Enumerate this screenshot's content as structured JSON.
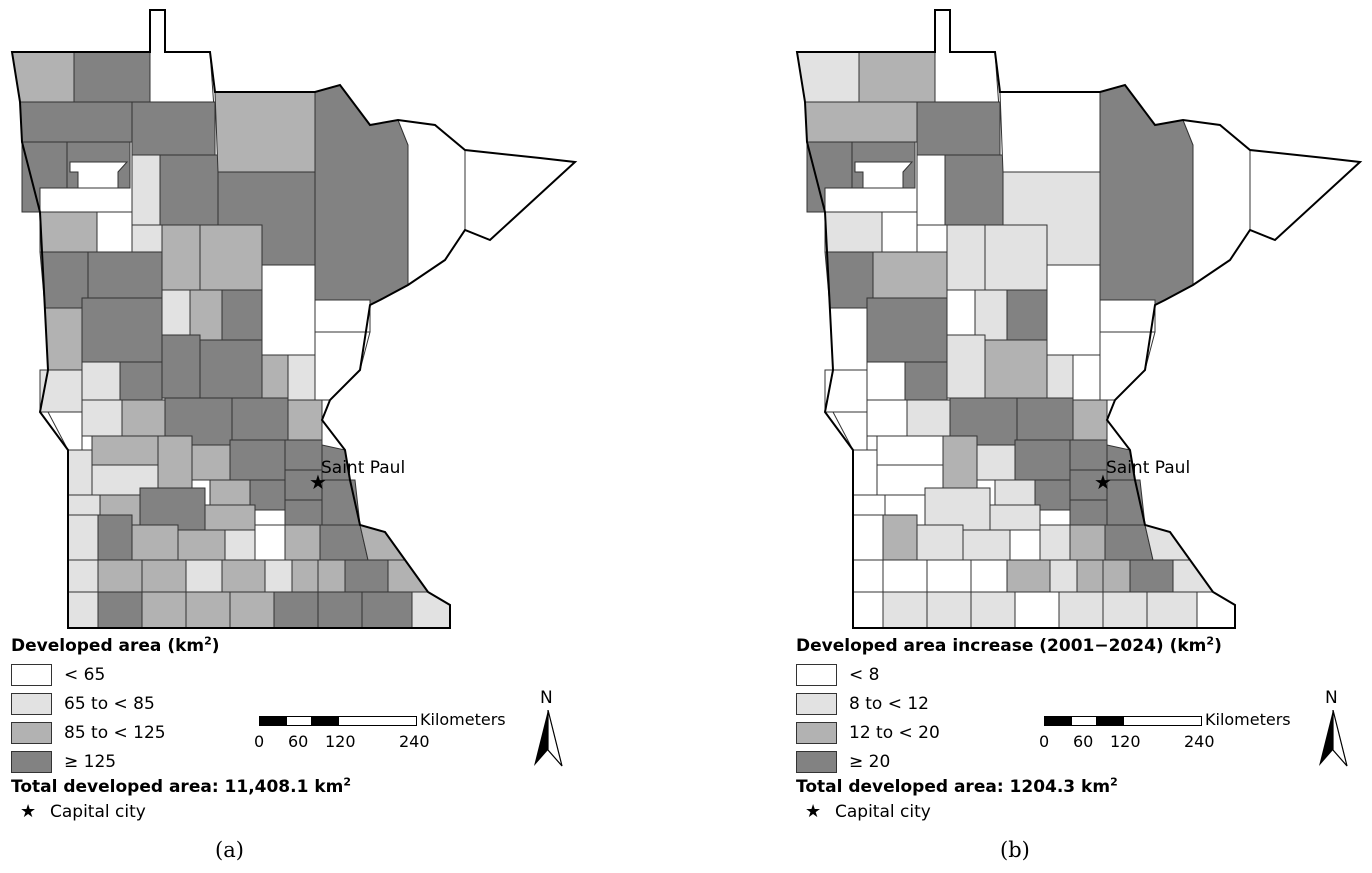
{
  "panels": [
    {
      "id": "a",
      "legend_title": "Developed area (km",
      "legend_title_unit_sup": "2",
      "legend_title_close": ")",
      "classes": [
        {
          "label": "< 65",
          "color": "#ffffff"
        },
        {
          "label": "65 to < 85",
          "color": "#e2e2e2"
        },
        {
          "label": "85 to < 125",
          "color": "#b2b2b2"
        },
        {
          "label": "≥ 125",
          "color": "#828282"
        }
      ],
      "total_label": "Total developed area: 11,408.1 km",
      "total_sup": "2",
      "capital_legend": "Capital city",
      "city_label": "Saint Paul",
      "panel_tag": "(a)"
    },
    {
      "id": "b",
      "legend_title": "Developed area increase (2001−2024) (km",
      "legend_title_unit_sup": "2",
      "legend_title_close": ")",
      "classes": [
        {
          "label": "< 8",
          "color": "#ffffff"
        },
        {
          "label": "8 to < 12",
          "color": "#e2e2e2"
        },
        {
          "label": "12 to < 20",
          "color": "#b2b2b2"
        },
        {
          "label": "≥ 20",
          "color": "#828282"
        }
      ],
      "total_label": "Total developed area: 1204.3 km",
      "total_sup": "2",
      "capital_legend": "Capital city",
      "city_label": "Saint Paul",
      "panel_tag": "(b)"
    }
  ],
  "scale_bar": {
    "unit": "Kilometers",
    "ticks": [
      "0",
      "60",
      "120",
      "240"
    ]
  },
  "north_arrow": {
    "label": "N"
  },
  "icons": {
    "capital": "star-icon",
    "north": "north-arrow-icon"
  }
}
